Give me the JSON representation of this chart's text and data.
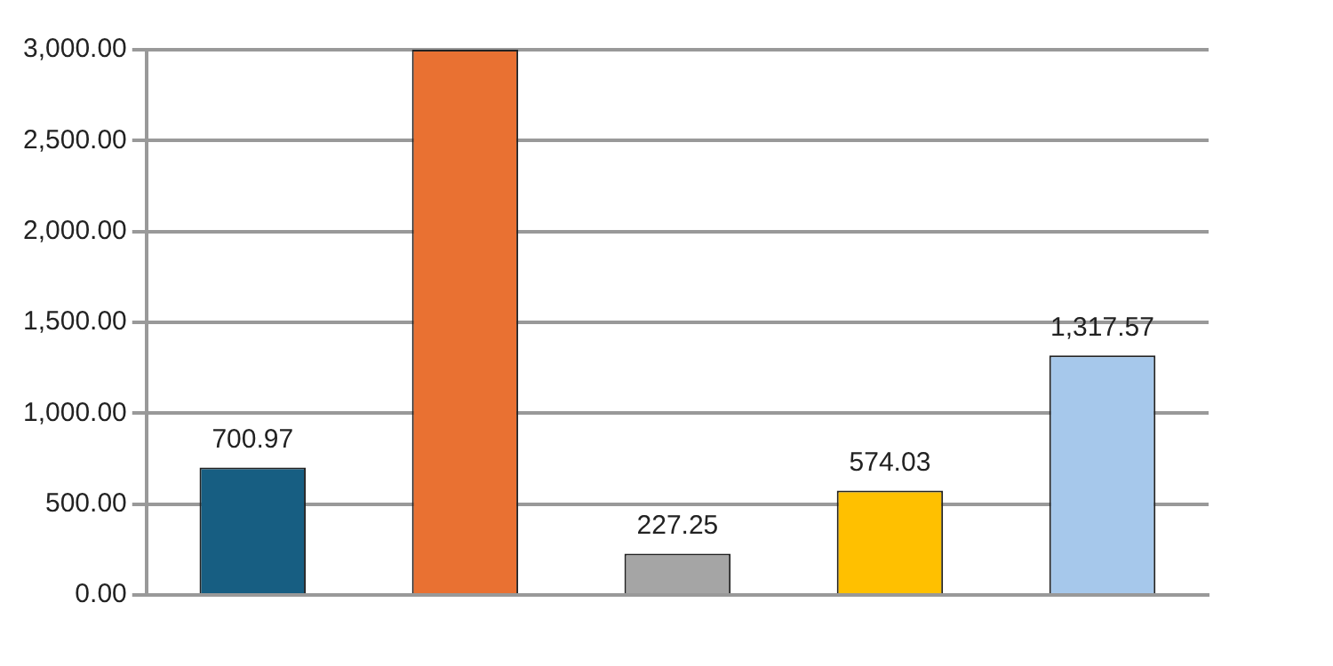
{
  "chart_data": {
    "type": "bar",
    "categories": [
      null,
      null,
      null,
      null,
      null
    ],
    "values": [
      700.97,
      3000,
      227.25,
      574.03,
      1317.57
    ],
    "colors": [
      "#175e82",
      "#e97132",
      "#a5a5a5",
      "#ffc000",
      "#a6c8eb"
    ],
    "value_labels": [
      "700.97",
      null,
      "227.25",
      "574.03",
      "1,317.57"
    ],
    "ylim": [
      0,
      3000
    ],
    "yticks": [
      {
        "value": 0,
        "label": "0.00"
      },
      {
        "value": 500,
        "label": "500.00"
      },
      {
        "value": 1000,
        "label": "1,000.00"
      },
      {
        "value": 1500,
        "label": "1,500.00"
      },
      {
        "value": 2000,
        "label": "2,000.00"
      },
      {
        "value": 2500,
        "label": "2,500.00"
      },
      {
        "value": 3000,
        "label": "3,000.00"
      }
    ],
    "grid": "y",
    "legend": false
  }
}
